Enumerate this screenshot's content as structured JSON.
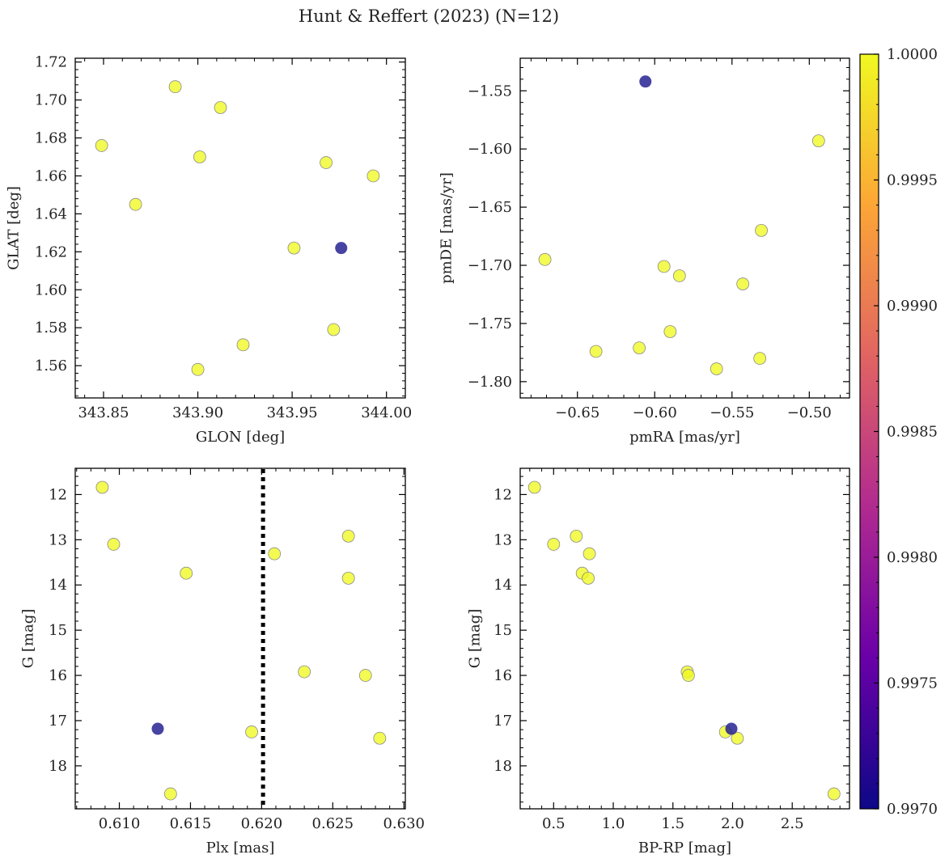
{
  "figure": {
    "title": "Hunt & Reffert (2023) (N=12)"
  },
  "colorbar": {
    "range": [
      0.997,
      1.0
    ],
    "ticks": [
      "0.9970",
      "0.9975",
      "0.9980",
      "0.9985",
      "0.9990",
      "0.9995",
      "1.0000"
    ],
    "colormap": "plasma",
    "stops": [
      "#0d0887",
      "#6a00a8",
      "#b12a90",
      "#e16462",
      "#fca636",
      "#f0f921"
    ]
  },
  "colors": {
    "high_prob_point": "#f0f921",
    "low_prob_point": "#1f1a8f",
    "point_edge": "#8a8a8a",
    "frame": "#000000"
  },
  "chart_data": [
    {
      "type": "scatter",
      "xlabel": "GLON [deg]",
      "ylabel": "GLAT [deg]",
      "xlim": [
        343.835,
        344.01
      ],
      "ylim": [
        1.543,
        1.722
      ],
      "xticks": [
        343.85,
        343.9,
        343.95,
        344.0
      ],
      "xticklabels": [
        "343.85",
        "343.90",
        "343.95",
        "344.00"
      ],
      "yticks": [
        1.56,
        1.58,
        1.6,
        1.62,
        1.64,
        1.66,
        1.68,
        1.7,
        1.72
      ],
      "yticklabels": [
        "1.56",
        "1.58",
        "1.60",
        "1.62",
        "1.64",
        "1.66",
        "1.68",
        "1.70",
        "1.72"
      ],
      "points": [
        {
          "x": 343.849,
          "y": 1.676,
          "c": 1.0
        },
        {
          "x": 343.867,
          "y": 1.645,
          "c": 1.0
        },
        {
          "x": 343.888,
          "y": 1.707,
          "c": 1.0
        },
        {
          "x": 343.9,
          "y": 1.558,
          "c": 1.0
        },
        {
          "x": 343.901,
          "y": 1.67,
          "c": 1.0
        },
        {
          "x": 343.912,
          "y": 1.696,
          "c": 1.0
        },
        {
          "x": 343.924,
          "y": 1.571,
          "c": 1.0
        },
        {
          "x": 343.951,
          "y": 1.622,
          "c": 1.0
        },
        {
          "x": 343.968,
          "y": 1.667,
          "c": 1.0
        },
        {
          "x": 343.972,
          "y": 1.579,
          "c": 1.0
        },
        {
          "x": 343.976,
          "y": 1.622,
          "c": 0.997
        },
        {
          "x": 343.993,
          "y": 1.66,
          "c": 1.0
        }
      ]
    },
    {
      "type": "scatter",
      "xlabel": "pmRA [mas/yr]",
      "ylabel": "pmDE [mas/yr]",
      "xlim": [
        -0.687,
        -0.474
      ],
      "ylim": [
        -1.814,
        -1.522
      ],
      "xticks": [
        -0.65,
        -0.6,
        -0.55,
        -0.5
      ],
      "xticklabels": [
        "−0.65",
        "−0.60",
        "−0.55",
        "−0.50"
      ],
      "yticks": [
        -1.8,
        -1.75,
        -1.7,
        -1.65,
        -1.6,
        -1.55
      ],
      "yticklabels": [
        "−1.80",
        "−1.75",
        "−1.70",
        "−1.65",
        "−1.60",
        "−1.55"
      ],
      "points": [
        {
          "x": -0.671,
          "y": -1.695,
          "c": 1.0
        },
        {
          "x": -0.638,
          "y": -1.774,
          "c": 1.0
        },
        {
          "x": -0.61,
          "y": -1.771,
          "c": 1.0
        },
        {
          "x": -0.606,
          "y": -1.542,
          "c": 0.997
        },
        {
          "x": -0.594,
          "y": -1.701,
          "c": 1.0
        },
        {
          "x": -0.59,
          "y": -1.757,
          "c": 1.0
        },
        {
          "x": -0.584,
          "y": -1.709,
          "c": 1.0
        },
        {
          "x": -0.56,
          "y": -1.789,
          "c": 1.0
        },
        {
          "x": -0.543,
          "y": -1.716,
          "c": 1.0
        },
        {
          "x": -0.532,
          "y": -1.78,
          "c": 1.0
        },
        {
          "x": -0.531,
          "y": -1.67,
          "c": 1.0
        },
        {
          "x": -0.494,
          "y": -1.593,
          "c": 1.0
        }
      ]
    },
    {
      "type": "scatter",
      "xlabel": "Plx [mas]",
      "ylabel": "G [mag]",
      "xlim": [
        0.6069,
        0.6301
      ],
      "ylim": [
        18.95,
        11.42
      ],
      "xticks": [
        0.61,
        0.615,
        0.62,
        0.625,
        0.63
      ],
      "xticklabels": [
        "0.610",
        "0.615",
        "0.620",
        "0.625",
        "0.630"
      ],
      "yticks": [
        12,
        13,
        14,
        15,
        16,
        17,
        18
      ],
      "yticklabels": [
        "12",
        "13",
        "14",
        "15",
        "16",
        "17",
        "18"
      ],
      "vline": {
        "x": 0.6201,
        "style": "dotted",
        "color": "#000000"
      },
      "points": [
        {
          "x": 0.6088,
          "y": 11.84,
          "c": 1.0
        },
        {
          "x": 0.6096,
          "y": 13.1,
          "c": 1.0
        },
        {
          "x": 0.6127,
          "y": 17.18,
          "c": 0.997
        },
        {
          "x": 0.6136,
          "y": 18.62,
          "c": 1.0
        },
        {
          "x": 0.6147,
          "y": 13.74,
          "c": 1.0
        },
        {
          "x": 0.6193,
          "y": 17.25,
          "c": 1.0
        },
        {
          "x": 0.6209,
          "y": 13.31,
          "c": 1.0
        },
        {
          "x": 0.623,
          "y": 15.92,
          "c": 1.0
        },
        {
          "x": 0.6261,
          "y": 12.92,
          "c": 1.0
        },
        {
          "x": 0.6261,
          "y": 13.85,
          "c": 1.0
        },
        {
          "x": 0.6273,
          "y": 16.0,
          "c": 1.0
        },
        {
          "x": 0.6283,
          "y": 17.39,
          "c": 1.0
        }
      ]
    },
    {
      "type": "scatter",
      "xlabel": "BP-RP [mag]",
      "ylabel": "G [mag]",
      "xlim": [
        0.22,
        2.98
      ],
      "ylim": [
        18.95,
        11.42
      ],
      "xticks": [
        0.5,
        1.0,
        1.5,
        2.0,
        2.5
      ],
      "xticklabels": [
        "0.5",
        "1.0",
        "1.5",
        "2.0",
        "2.5"
      ],
      "yticks": [
        12,
        13,
        14,
        15,
        16,
        17,
        18
      ],
      "yticklabels": [
        "12",
        "13",
        "14",
        "15",
        "16",
        "17",
        "18"
      ],
      "points": [
        {
          "x": 0.34,
          "y": 11.84,
          "c": 1.0
        },
        {
          "x": 0.5,
          "y": 13.1,
          "c": 1.0
        },
        {
          "x": 0.69,
          "y": 12.92,
          "c": 1.0
        },
        {
          "x": 0.74,
          "y": 13.74,
          "c": 1.0
        },
        {
          "x": 0.79,
          "y": 13.85,
          "c": 1.0
        },
        {
          "x": 0.8,
          "y": 13.31,
          "c": 1.0
        },
        {
          "x": 1.62,
          "y": 15.92,
          "c": 1.0
        },
        {
          "x": 1.63,
          "y": 16.0,
          "c": 1.0
        },
        {
          "x": 1.94,
          "y": 17.25,
          "c": 1.0
        },
        {
          "x": 1.99,
          "y": 17.18,
          "c": 0.997
        },
        {
          "x": 2.04,
          "y": 17.39,
          "c": 1.0
        },
        {
          "x": 2.85,
          "y": 18.62,
          "c": 1.0
        }
      ]
    }
  ]
}
